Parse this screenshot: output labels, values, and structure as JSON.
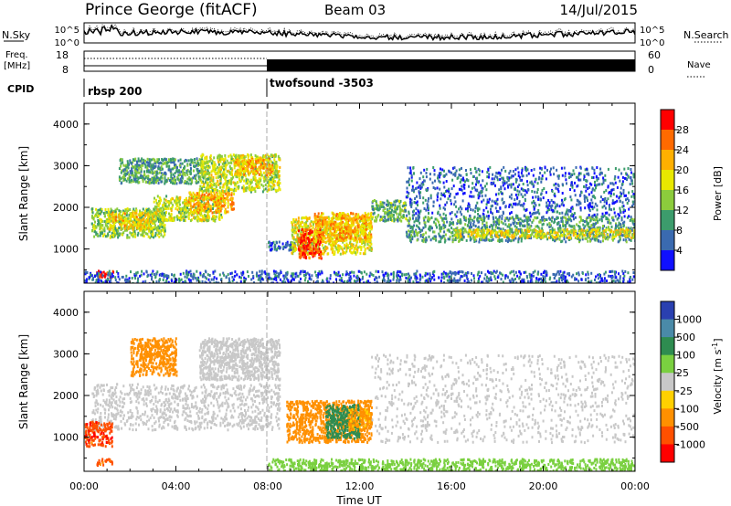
{
  "header": {
    "station": "Prince George (fitACF)",
    "beam": "Beam 03",
    "date": "14/Jul/2015"
  },
  "noise_panel": {
    "left_label": "N.Sky",
    "right_label": "N.Search",
    "ticks": [
      "10^5",
      "10^0"
    ]
  },
  "freq_panel": {
    "left_label_1": "Freq.",
    "left_label_2": "[MHz]",
    "left_ticks": [
      "18",
      "8"
    ],
    "right_label": "Nave",
    "right_ticks": [
      "60",
      "0"
    ]
  },
  "cpid": {
    "label": "CPID",
    "modes": [
      {
        "name": "rbsp 200",
        "start_h": 0
      },
      {
        "name": "twofsound -3503",
        "start_h": 8
      }
    ]
  },
  "power_colorbar": {
    "label": "Power [dB]",
    "ticks": [
      "28",
      "24",
      "20",
      "16",
      "12",
      "8",
      "4"
    ],
    "colors": [
      "#ff0000",
      "#ff6a00",
      "#ffb000",
      "#e8e800",
      "#8ccc3c",
      "#3c9c6c",
      "#3a6ab0",
      "#1010ff"
    ]
  },
  "velocity_colorbar": {
    "label": "Velocity [m s",
    "label_sup": "-1",
    "label_end": "]",
    "ticks": [
      "1000",
      "500",
      "100",
      "25",
      "-25",
      "-100",
      "-500",
      "-1000"
    ],
    "colors": [
      "#2a40b0",
      "#4a8aa8",
      "#2e8c50",
      "#7ad040",
      "#c8c8c8",
      "#ffd000",
      "#ff9000",
      "#ff5000",
      "#ff0000"
    ]
  },
  "chart_data": {
    "type": "heatmap",
    "xlabel": "Time UT",
    "x_ticks": [
      "00:00",
      "04:00",
      "08:00",
      "12:00",
      "16:00",
      "20:00",
      "00:00"
    ],
    "xlim_hours": [
      0,
      24
    ],
    "panels": [
      {
        "name": "Power",
        "ylabel": "Slant Range [km]",
        "ylim": [
          180,
          4500
        ],
        "y_ticks": [
          1000,
          2000,
          3000,
          4000
        ],
        "bands": [
          {
            "t": [
              0.3,
              3.5
            ],
            "r": [
              1300,
              2000
            ],
            "v": 14
          },
          {
            "t": [
              1.0,
              3.0
            ],
            "r": [
              1500,
              1900
            ],
            "v": 20
          },
          {
            "t": [
              3.0,
              6.0
            ],
            "r": [
              1700,
              2300
            ],
            "v": 16
          },
          {
            "t": [
              4.5,
              6.5
            ],
            "r": [
              1900,
              2400
            ],
            "v": 22
          },
          {
            "t": [
              5.0,
              8.5
            ],
            "r": [
              2400,
              3300
            ],
            "v": 16
          },
          {
            "t": [
              6.5,
              8.2
            ],
            "r": [
              2800,
              3200
            ],
            "v": 22
          },
          {
            "t": [
              1.5,
              5.0
            ],
            "r": [
              2600,
              3200
            ],
            "v": 10
          },
          {
            "t": [
              8.0,
              10.0
            ],
            "r": [
              1000,
              1200
            ],
            "v": 6
          },
          {
            "t": [
              9.0,
              12.5
            ],
            "r": [
              900,
              1800
            ],
            "v": 18
          },
          {
            "t": [
              9.3,
              10.3
            ],
            "r": [
              800,
              1500
            ],
            "v": 28
          },
          {
            "t": [
              10.0,
              12.5
            ],
            "r": [
              1200,
              1900
            ],
            "v": 22
          },
          {
            "t": [
              12.5,
              14.0
            ],
            "r": [
              1700,
              2200
            ],
            "v": 12
          },
          {
            "t": [
              14.0,
              24.0
            ],
            "r": [
              1200,
              1800
            ],
            "v": 10
          },
          {
            "t": [
              16.0,
              24.0
            ],
            "r": [
              1300,
              1500
            ],
            "v": 18
          },
          {
            "t": [
              14.0,
              24.0
            ],
            "r": [
              1800,
              3000
            ],
            "v": 6
          },
          {
            "t": [
              0.5,
              1.3
            ],
            "r": [
              350,
              500
            ],
            "v": 28
          },
          {
            "t": [
              0.0,
              24.0
            ],
            "r": [
              200,
              500
            ],
            "v": 6
          }
        ]
      },
      {
        "name": "Velocity",
        "ylabel": "Slant Range [km]",
        "ylim": [
          180,
          4500
        ],
        "y_ticks": [
          1000,
          2000,
          3000,
          4000
        ],
        "bands": [
          {
            "t": [
              0.3,
              8.5
            ],
            "r": [
              1200,
              2300
            ],
            "v": 0
          },
          {
            "t": [
              5.0,
              8.5
            ],
            "r": [
              2400,
              3400
            ],
            "v": 0
          },
          {
            "t": [
              0.0,
              1.2
            ],
            "r": [
              800,
              1400
            ],
            "v": -800
          },
          {
            "t": [
              2.0,
              4.0
            ],
            "r": [
              2500,
              3400
            ],
            "v": -200
          },
          {
            "t": [
              8.8,
              12.5
            ],
            "r": [
              900,
              1900
            ],
            "v": -300
          },
          {
            "t": [
              10.5,
              12.0
            ],
            "r": [
              1000,
              1800
            ],
            "v": 200
          },
          {
            "t": [
              11.5,
              12.5
            ],
            "r": [
              1200,
              1700
            ],
            "v": -120
          },
          {
            "t": [
              12.5,
              24.0
            ],
            "r": [
              900,
              3000
            ],
            "v": 0
          },
          {
            "t": [
              0.5,
              1.2
            ],
            "r": [
              350,
              500
            ],
            "v": -600
          },
          {
            "t": [
              8.0,
              24.0
            ],
            "r": [
              200,
              500
            ],
            "v": 60
          }
        ]
      }
    ]
  }
}
